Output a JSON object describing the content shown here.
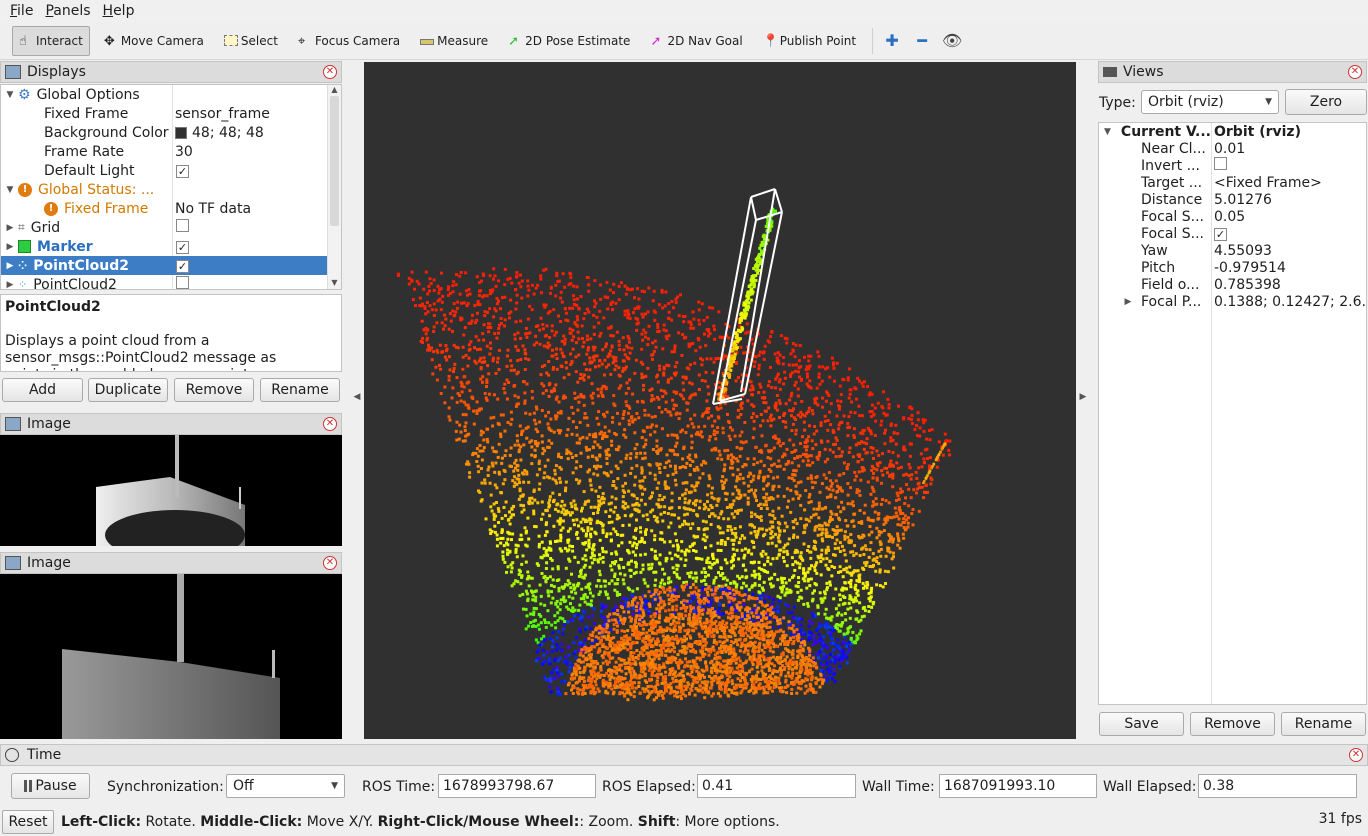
{
  "menu": [
    "File",
    "Panels",
    "Help"
  ],
  "toolbar": {
    "tools": [
      "Interact",
      "Move Camera",
      "Select",
      "Focus Camera",
      "Measure",
      "2D Pose Estimate",
      "2D Nav Goal",
      "Publish Point"
    ]
  },
  "displays": {
    "title": "Displays",
    "rows": [
      {
        "label": "Global Options",
        "value": ""
      },
      {
        "label": "Fixed Frame",
        "value": "sensor_frame"
      },
      {
        "label": "Background Color",
        "value": "48; 48; 48"
      },
      {
        "label": "Frame Rate",
        "value": "30"
      },
      {
        "label": "Default Light",
        "value": "✓"
      },
      {
        "label": "Global Status: ...",
        "value": ""
      },
      {
        "label": "Fixed Frame",
        "value": "No TF data"
      },
      {
        "label": "Grid",
        "value": ""
      },
      {
        "label": "Marker",
        "value": "✓"
      },
      {
        "label": "PointCloud2",
        "value": "✓"
      },
      {
        "label": "PointCloud2",
        "value": ""
      }
    ],
    "desc_title": "PointCloud2",
    "desc_text": "Displays a point cloud from a sensor_msgs::PointCloud2 message as points in the world, drawn as points, billboards, or cubes.",
    "buttons": [
      "Add",
      "Duplicate",
      "Remove",
      "Rename"
    ]
  },
  "image_panels": [
    "Image",
    "Image"
  ],
  "views": {
    "title": "Views",
    "type_label": "Type:",
    "type_value": "Orbit (rviz)",
    "zero_label": "Zero",
    "header_label": "Current V...",
    "header_value": "Orbit (rviz)",
    "rows": [
      {
        "label": "Near Cl...",
        "value": "0.01"
      },
      {
        "label": "Invert ...",
        "value": ""
      },
      {
        "label": "Target ...",
        "value": "<Fixed Frame>"
      },
      {
        "label": "Distance",
        "value": "5.01276"
      },
      {
        "label": "Focal S...",
        "value": "0.05"
      },
      {
        "label": "Focal S...",
        "value": "✓"
      },
      {
        "label": "Yaw",
        "value": "4.55093"
      },
      {
        "label": "Pitch",
        "value": "-0.979514"
      },
      {
        "label": "Field o...",
        "value": "0.785398"
      },
      {
        "label": "Focal P...",
        "value": "0.1388; 0.12427; 2.6..."
      }
    ],
    "buttons": [
      "Save",
      "Remove",
      "Rename"
    ]
  },
  "time": {
    "title": "Time",
    "pause": "Pause",
    "sync_label": "Synchronization:",
    "sync_value": "Off",
    "ros_time_label": "ROS Time:",
    "ros_time": "1678993798.67",
    "ros_elapsed_label": "ROS Elapsed:",
    "ros_elapsed": "0.41",
    "wall_time_label": "Wall Time:",
    "wall_time": "1687091993.10",
    "wall_elapsed_label": "Wall Elapsed:",
    "wall_elapsed": "0.38"
  },
  "status": {
    "reset": "Reset",
    "k1": "Left-Click:",
    "v1": " Rotate. ",
    "k2": "Middle-Click:",
    "v2": " Move X/Y. ",
    "k3": "Right-Click/Mouse Wheel:",
    "v3": ": Zoom. ",
    "k4": "Shift",
    "v4": ": More options.",
    "fps": "31 fps"
  }
}
